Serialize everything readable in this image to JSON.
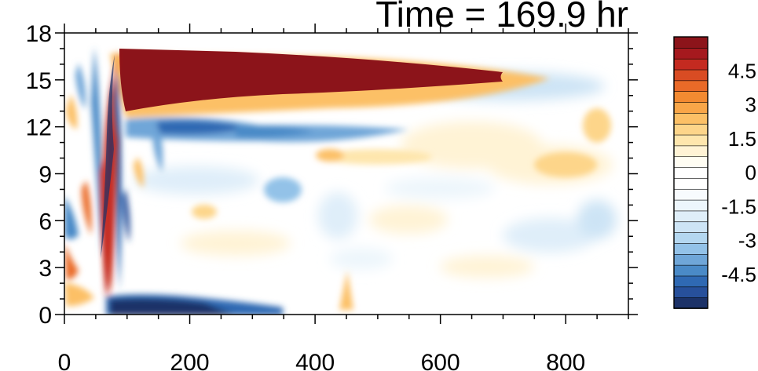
{
  "chart_data": {
    "type": "heatmap",
    "title": "Time = 169.9 hr",
    "xlabel": "",
    "ylabel": "",
    "xlim": [
      0,
      900
    ],
    "ylim": [
      0,
      18
    ],
    "xticks": [
      0,
      200,
      400,
      600,
      800
    ],
    "yticks": [
      0,
      3,
      6,
      9,
      12,
      15,
      18
    ],
    "grid": false,
    "colorbar": {
      "placement": "right",
      "levels": [
        -6,
        -5.5,
        -5,
        -4.5,
        -4,
        -3.5,
        -3,
        -2.5,
        -2,
        -1.5,
        -1,
        -0.5,
        0,
        0.5,
        1,
        1.5,
        2,
        2.5,
        3,
        3.5,
        4,
        4.5,
        5,
        5.5,
        6
      ],
      "labels": [
        "4.5",
        "3",
        "1.5",
        "0",
        "-1.5",
        "-3",
        "-4.5"
      ],
      "label_values": [
        4.5,
        3,
        1.5,
        0,
        -1.5,
        -3,
        -4.5
      ],
      "colors": [
        "#1c3268",
        "#27509b",
        "#2f69b3",
        "#4a8ac7",
        "#6fa6d8",
        "#93c2e8",
        "#b4d7f0",
        "#cde4f5",
        "#dfeef9",
        "#edf6fc",
        "#f8fbfe",
        "#ffffff",
        "#ffffff",
        "#fffdf3",
        "#fff3d5",
        "#fee6ad",
        "#fdd58a",
        "#fcc066",
        "#f9a648",
        "#f38a31",
        "#ea6a28",
        "#d94c23",
        "#c42a20",
        "#a5191e",
        "#8c141a"
      ]
    },
    "features": [
      {
        "name": "positive core",
        "x": [
          90,
          700
        ],
        "y": [
          13.5,
          17
        ],
        "value": 6
      },
      {
        "name": "negative band",
        "x": [
          100,
          550
        ],
        "y": [
          11,
          13
        ],
        "value": -4
      },
      {
        "name": "negative surface",
        "x": [
          70,
          350
        ],
        "y": [
          0,
          1.3
        ],
        "value": -6
      },
      {
        "name": "positive tilted streak",
        "x": [
          60,
          110
        ],
        "y": [
          0,
          13
        ],
        "value": 5
      },
      {
        "name": "negative tilted streak",
        "x": [
          75,
          125
        ],
        "y": [
          0,
          13
        ],
        "value": -4
      },
      {
        "name": "positive patch",
        "x": [
          820,
          880
        ],
        "y": [
          9,
          12
        ],
        "value": 2
      }
    ]
  }
}
